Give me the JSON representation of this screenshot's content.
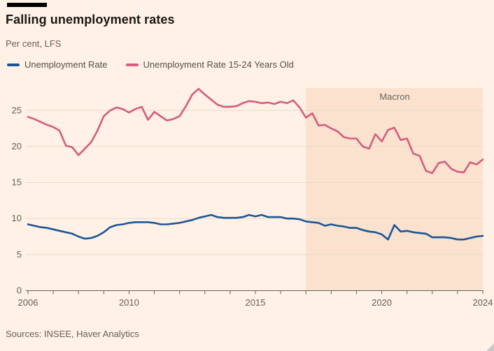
{
  "header": {
    "title": "Falling unemployment rates",
    "subtitle": "Per cent, LFS"
  },
  "legend": {
    "items": [
      {
        "label": "Unemployment Rate",
        "color": "#1b5596"
      },
      {
        "label": "Unemployment Rate 15-24 Years Old",
        "color": "#d55d7d"
      }
    ]
  },
  "footer": {
    "sources": "Sources: INSEE, Haver Analytics"
  },
  "colors": {
    "background": "#fff1e5",
    "region_fill": "#fae2cf",
    "gridline": "#e8dacb",
    "axis": "#66605b",
    "title_text": "#1a1816",
    "muted_text": "#66605b"
  },
  "chart_data": {
    "type": "line",
    "title": "Falling unemployment rates",
    "subtitle": "Per cent, LFS",
    "ylabel": "Per cent",
    "ylim": [
      0,
      28.5
    ],
    "xlim": [
      2006,
      2024
    ],
    "y_ticks": [
      0,
      5,
      10,
      15,
      20,
      25
    ],
    "x_tick_labels": [
      2006,
      2010,
      2015,
      2020,
      2024
    ],
    "x_minor_ticks": [
      2006,
      2007,
      2008,
      2009,
      2010,
      2011,
      2012,
      2013,
      2014,
      2015,
      2016,
      2017,
      2018,
      2019,
      2020,
      2021,
      2022,
      2023,
      2024
    ],
    "grid": "horizontal",
    "legend_position": "top",
    "annotation": {
      "label": "Macron",
      "x_start": 2017,
      "x_end": 2024,
      "fill": "#fae2cf"
    },
    "x": [
      2006,
      2006.25,
      2006.5,
      2006.75,
      2007,
      2007.25,
      2007.5,
      2007.75,
      2008,
      2008.25,
      2008.5,
      2008.75,
      2009,
      2009.25,
      2009.5,
      2009.75,
      2010,
      2010.25,
      2010.5,
      2010.75,
      2011,
      2011.25,
      2011.5,
      2011.75,
      2012,
      2012.25,
      2012.5,
      2012.75,
      2013,
      2013.25,
      2013.5,
      2013.75,
      2014,
      2014.25,
      2014.5,
      2014.75,
      2015,
      2015.25,
      2015.5,
      2015.75,
      2016,
      2016.25,
      2016.5,
      2016.75,
      2017,
      2017.25,
      2017.5,
      2017.75,
      2018,
      2018.25,
      2018.5,
      2018.75,
      2019,
      2019.25,
      2019.5,
      2019.75,
      2020,
      2020.25,
      2020.5,
      2020.75,
      2021,
      2021.25,
      2021.5,
      2021.75,
      2022,
      2022.25,
      2022.5,
      2022.75,
      2023,
      2023.25,
      2023.5,
      2023.75,
      2024
    ],
    "series": [
      {
        "name": "Unemployment Rate",
        "color": "#1b5596",
        "values": [
          9.2,
          9.0,
          8.8,
          8.7,
          8.5,
          8.3,
          8.1,
          7.9,
          7.5,
          7.2,
          7.3,
          7.6,
          8.1,
          8.8,
          9.1,
          9.2,
          9.4,
          9.5,
          9.5,
          9.5,
          9.4,
          9.2,
          9.2,
          9.3,
          9.4,
          9.6,
          9.8,
          10.1,
          10.3,
          10.5,
          10.2,
          10.1,
          10.1,
          10.1,
          10.2,
          10.5,
          10.3,
          10.5,
          10.2,
          10.2,
          10.2,
          10.0,
          10.0,
          9.9,
          9.6,
          9.5,
          9.4,
          9.0,
          9.2,
          9.0,
          8.9,
          8.7,
          8.7,
          8.4,
          8.2,
          8.1,
          7.8,
          7.1,
          9.1,
          8.2,
          8.3,
          8.1,
          8.0,
          7.9,
          7.4,
          7.4,
          7.4,
          7.3,
          7.1,
          7.1,
          7.3,
          7.5,
          7.6
        ]
      },
      {
        "name": "Unemployment Rate 15-24 Years Old",
        "color": "#d55d7d",
        "values": [
          24.1,
          23.8,
          23.4,
          23.0,
          22.7,
          22.2,
          20.1,
          19.9,
          18.8,
          19.7,
          20.6,
          22.2,
          24.2,
          25.0,
          25.4,
          25.2,
          24.7,
          25.2,
          25.5,
          23.7,
          24.8,
          24.2,
          23.6,
          23.8,
          24.2,
          25.6,
          27.2,
          28.0,
          27.2,
          26.5,
          25.8,
          25.5,
          25.5,
          25.6,
          26.0,
          26.3,
          26.2,
          26.0,
          26.1,
          25.9,
          26.2,
          26.0,
          26.4,
          25.4,
          24.0,
          24.6,
          22.9,
          23.0,
          22.5,
          22.1,
          21.3,
          21.1,
          21.1,
          20.0,
          19.7,
          21.7,
          20.7,
          22.3,
          22.6,
          20.9,
          21.1,
          19.0,
          18.7,
          16.6,
          16.3,
          17.7,
          17.9,
          16.9,
          16.5,
          16.4,
          17.8,
          17.5,
          18.2
        ]
      }
    ]
  }
}
